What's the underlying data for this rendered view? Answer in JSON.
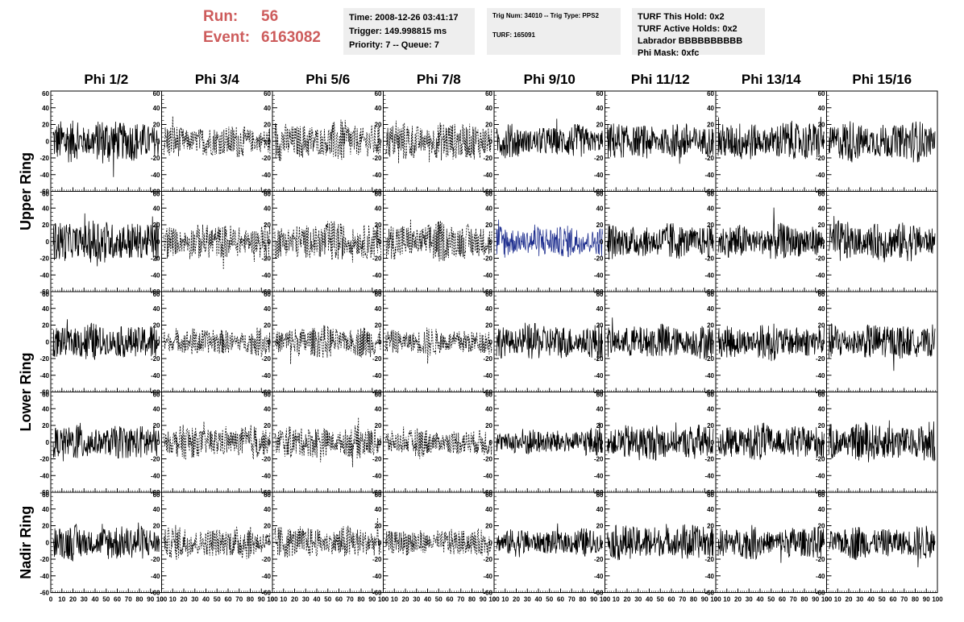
{
  "header": {
    "run_label": "Run:",
    "run_value": "56",
    "event_label": "Event:",
    "event_value": "6163082",
    "time_box": {
      "line1": "Time: 2008-12-26 03:41:17",
      "line2": "Trigger: 149.998815 ms",
      "line3": "Priority: 7 -- Queue: 7"
    },
    "trig_box": {
      "line1": "Trig Num: 34010 -- Trig Type: PPS2",
      "line2": "TURF: 165091"
    },
    "turf_box": {
      "line1": "TURF This Hold: 0x2",
      "line2": "TURF Active Holds: 0x2",
      "line3": "Labrador BBBBBBBBBB",
      "line4": "Phi Mask: 0xfc"
    }
  },
  "colors": {
    "header_text": "#cd5c5c",
    "info_box_bg": "#eeeeee",
    "trace": "#000000",
    "highlight_trace": "#1f2f8f"
  },
  "chart_data": {
    "type": "line",
    "columns": [
      "Phi 1/2",
      "Phi 3/4",
      "Phi 5/6",
      "Phi 7/8",
      "Phi 9/10",
      "Phi 11/12",
      "Phi 13/14",
      "Phi 15/16"
    ],
    "rows": [
      "Upper Ring",
      "Upper Ring",
      "Lower Ring",
      "Lower Ring",
      "Nadir Ring"
    ],
    "row_labels": [
      {
        "text": "Upper Ring",
        "rows": [
          0,
          1
        ]
      },
      {
        "text": "Lower Ring",
        "rows": [
          2,
          3
        ]
      },
      {
        "text": "Nadir Ring",
        "rows": [
          4
        ]
      }
    ],
    "xlim": [
      0,
      100
    ],
    "ylim": [
      -60,
      60
    ],
    "x_ticks": [
      "0",
      "10",
      "20",
      "30",
      "40",
      "50",
      "60",
      "70",
      "80",
      "90",
      "100"
    ],
    "y_ticks": [
      "60",
      "40",
      "20",
      "0",
      "-20",
      "-40",
      "-60"
    ],
    "samples_per_trace": 256,
    "dashed_columns": [
      1,
      2,
      3
    ],
    "highlighted_panel": {
      "row": 1,
      "col": 4
    },
    "trace_amplitudes": [
      [
        25,
        18,
        22,
        22,
        18,
        20,
        22,
        22
      ],
      [
        25,
        20,
        22,
        22,
        18,
        20,
        20,
        22
      ],
      [
        20,
        15,
        18,
        15,
        20,
        20,
        20,
        20
      ],
      [
        20,
        18,
        18,
        15,
        15,
        20,
        20,
        22
      ],
      [
        20,
        18,
        18,
        15,
        15,
        20,
        18,
        18
      ]
    ]
  }
}
